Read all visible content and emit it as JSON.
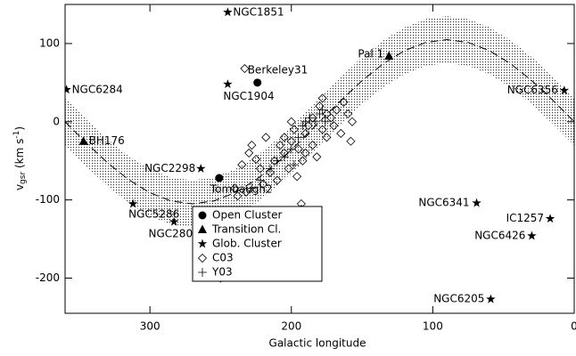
{
  "chart_data": {
    "type": "scatter",
    "xlabel": "Galactic longitude",
    "ylabel": [
      "v",
      "gsr",
      " (km s",
      "-1",
      ")"
    ],
    "xlim": [
      360,
      0
    ],
    "ylim": [
      -245,
      150
    ],
    "xticks": [
      300,
      200,
      100,
      0
    ],
    "yticks": [
      -200,
      -100,
      0,
      100
    ],
    "legend": "lower center",
    "color": "#000000",
    "model": {
      "x": [
        360,
        345,
        330,
        315,
        300,
        285,
        270,
        255,
        240,
        225,
        210,
        195,
        180,
        165,
        150,
        135,
        120,
        105,
        90,
        75,
        60,
        45,
        30,
        15,
        0
      ],
      "values": [
        0,
        -27.2,
        -52.5,
        -74.2,
        -90.9,
        -101.4,
        -105,
        -101.4,
        -90.9,
        -74.2,
        -52.5,
        -27.2,
        0,
        27.2,
        52.5,
        74.2,
        90.9,
        101.4,
        105,
        101.4,
        90.9,
        74.2,
        52.5,
        27.2,
        0
      ],
      "upper": [
        30,
        2.8,
        -22.5,
        -44.2,
        -60.9,
        -71.4,
        -75,
        -71.4,
        -60.9,
        -44.2,
        -22.5,
        2.8,
        30,
        57.2,
        82.5,
        104.2,
        120.9,
        131.4,
        135,
        131.4,
        120.9,
        104.2,
        82.5,
        57.2,
        30
      ],
      "lower": [
        -30,
        -57.2,
        -82.5,
        -104.2,
        -120.9,
        -131.4,
        -135,
        -131.4,
        -120.9,
        -104.2,
        -82.5,
        -57.2,
        -30,
        -2.8,
        22.5,
        44.2,
        60.9,
        71.4,
        75,
        71.4,
        60.9,
        44.2,
        22.5,
        -2.8,
        -30
      ]
    },
    "series": [
      {
        "name": "Open Cluster",
        "marker": "circle",
        "x": [
          224,
          251
        ],
        "values": [
          50,
          -72
        ],
        "labels": [
          "Berkeley31",
          "Tombaugh2"
        ]
      },
      {
        "name": "Transition Cl.",
        "marker": "triangle",
        "x": [
          347,
          131
        ],
        "values": [
          -25,
          84
        ],
        "labels": [
          "BH176",
          "Pal 1"
        ]
      },
      {
        "name": "Glob. Cluster",
        "marker": "star",
        "x": [
          245,
          359,
          245,
          264,
          312,
          283,
          69,
          17,
          30,
          59,
          7
        ],
        "values": [
          140,
          41,
          48,
          -60,
          -105,
          -128,
          -104,
          -124,
          -146,
          -227,
          40
        ],
        "labels": [
          "NGC1851",
          "NGC6284",
          "NGC1904",
          "NGC2298",
          "NGC5286",
          "NGC2808",
          "NGC6341",
          "IC1257",
          "NGC6426",
          "NGC6205",
          "NGC6356"
        ]
      },
      {
        "name": "C03",
        "marker": "diamond",
        "x": [
          250,
          233,
          193,
          193,
          230,
          228,
          235,
          225,
          222,
          215,
          212,
          208,
          205,
          205,
          200,
          200,
          198,
          195,
          192,
          190,
          188,
          185,
          185,
          182,
          180,
          178,
          178,
          175,
          172,
          170,
          168,
          165,
          163,
          160,
          158,
          157,
          232,
          238,
          220,
          210,
          202,
          196,
          218,
          240,
          190,
          175
        ],
        "values": [
          -200,
          68,
          -105,
          -112,
          -40,
          -30,
          -55,
          -48,
          -60,
          -65,
          -50,
          -30,
          -20,
          -40,
          -25,
          0,
          -10,
          -35,
          -50,
          -15,
          -5,
          5,
          -30,
          -45,
          20,
          30,
          -10,
          -20,
          5,
          -5,
          15,
          -15,
          25,
          10,
          -25,
          0,
          -90,
          -95,
          -80,
          -75,
          -60,
          -70,
          -20,
          -85,
          -40,
          10
        ]
      },
      {
        "name": "Y03",
        "marker": "plus",
        "x": [
          228,
          222,
          215,
          210,
          205,
          200,
          195,
          192,
          190,
          187,
          183,
          180,
          178,
          176,
          198
        ],
        "values": [
          -85,
          -75,
          -60,
          -50,
          -45,
          -35,
          -20,
          -5,
          0,
          5,
          0,
          10,
          15,
          0,
          -55
        ]
      }
    ]
  }
}
